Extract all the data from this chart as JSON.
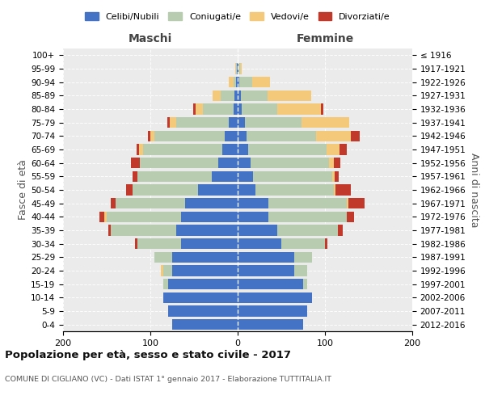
{
  "age_groups": [
    "0-4",
    "5-9",
    "10-14",
    "15-19",
    "20-24",
    "25-29",
    "30-34",
    "35-39",
    "40-44",
    "45-49",
    "50-54",
    "55-59",
    "60-64",
    "65-69",
    "70-74",
    "75-79",
    "80-84",
    "85-89",
    "90-94",
    "95-99",
    "100+"
  ],
  "birth_years": [
    "2012-2016",
    "2007-2011",
    "2002-2006",
    "1997-2001",
    "1992-1996",
    "1987-1991",
    "1982-1986",
    "1977-1981",
    "1972-1976",
    "1967-1971",
    "1962-1966",
    "1957-1961",
    "1952-1956",
    "1947-1951",
    "1942-1946",
    "1937-1941",
    "1932-1936",
    "1927-1931",
    "1922-1926",
    "1917-1921",
    "≤ 1916"
  ],
  "males": {
    "celibi": [
      75,
      80,
      85,
      80,
      75,
      75,
      65,
      70,
      65,
      60,
      45,
      30,
      22,
      18,
      15,
      10,
      5,
      4,
      2,
      1,
      0
    ],
    "coniugati": [
      0,
      0,
      0,
      5,
      10,
      20,
      50,
      75,
      85,
      80,
      75,
      85,
      90,
      90,
      80,
      60,
      35,
      15,
      3,
      1,
      0
    ],
    "vedovi": [
      0,
      0,
      0,
      0,
      3,
      0,
      0,
      0,
      3,
      0,
      0,
      0,
      0,
      5,
      5,
      8,
      8,
      10,
      5,
      1,
      0
    ],
    "divorziati": [
      0,
      0,
      0,
      0,
      0,
      0,
      3,
      3,
      5,
      5,
      8,
      5,
      10,
      3,
      3,
      3,
      3,
      0,
      0,
      0,
      0
    ]
  },
  "females": {
    "nubili": [
      75,
      80,
      85,
      75,
      65,
      65,
      50,
      45,
      35,
      35,
      20,
      18,
      15,
      12,
      10,
      8,
      5,
      4,
      2,
      1,
      0
    ],
    "coniugate": [
      0,
      0,
      0,
      5,
      15,
      20,
      50,
      70,
      90,
      90,
      90,
      90,
      90,
      90,
      80,
      65,
      40,
      30,
      15,
      2,
      0
    ],
    "vedove": [
      0,
      0,
      0,
      0,
      0,
      0,
      0,
      0,
      0,
      2,
      2,
      3,
      5,
      15,
      40,
      55,
      50,
      50,
      20,
      2,
      0
    ],
    "divorziate": [
      0,
      0,
      0,
      0,
      0,
      0,
      3,
      5,
      8,
      18,
      18,
      5,
      8,
      8,
      10,
      0,
      3,
      0,
      0,
      0,
      0
    ]
  },
  "colors": {
    "celibi_nubili": "#4472C4",
    "coniugati": "#B8CCB0",
    "vedovi": "#F5C97A",
    "divorziati": "#C0392B"
  },
  "title": "Popolazione per età, sesso e stato civile - 2017",
  "subtitle": "COMUNE DI CIGLIANO (VC) - Dati ISTAT 1° gennaio 2017 - Elaborazione TUTTITALIA.IT",
  "xlabel_left": "Maschi",
  "xlabel_right": "Femmine",
  "ylabel_left": "Fasce di età",
  "ylabel_right": "Anni di nascita",
  "xlim": 200,
  "background_color": "#ffffff",
  "plot_bg_color": "#ebebeb",
  "grid_color": "#ffffff",
  "legend_labels": [
    "Celibi/Nubili",
    "Coniugati/e",
    "Vedovi/e",
    "Divorziati/e"
  ]
}
